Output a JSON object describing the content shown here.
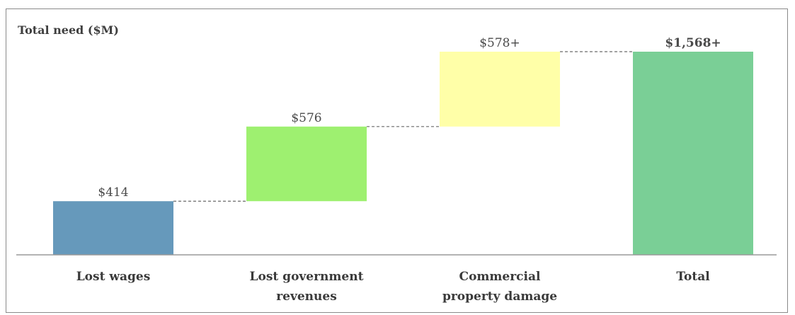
{
  "chart_data": {
    "type": "bar",
    "subtype": "waterfall",
    "title": "Total need ($M)",
    "categories": [
      [
        "Lost wages"
      ],
      [
        "Lost government",
        "revenues"
      ],
      [
        "Commercial",
        "property damage"
      ],
      [
        "Total"
      ]
    ],
    "values": [
      414,
      576,
      578,
      1568
    ],
    "value_labels": [
      "$414",
      "$576",
      "$578+",
      "$1,568+"
    ],
    "bar_kinds": [
      "delta",
      "delta",
      "delta",
      "total"
    ],
    "colors": [
      "#6699bb",
      "#9ef070",
      "#ffffa8",
      "#7acf96"
    ],
    "connector_style": "dashed",
    "ylim": [
      0,
      1568
    ],
    "xlabel": "",
    "ylabel": "",
    "grid": false,
    "legend": "none"
  }
}
